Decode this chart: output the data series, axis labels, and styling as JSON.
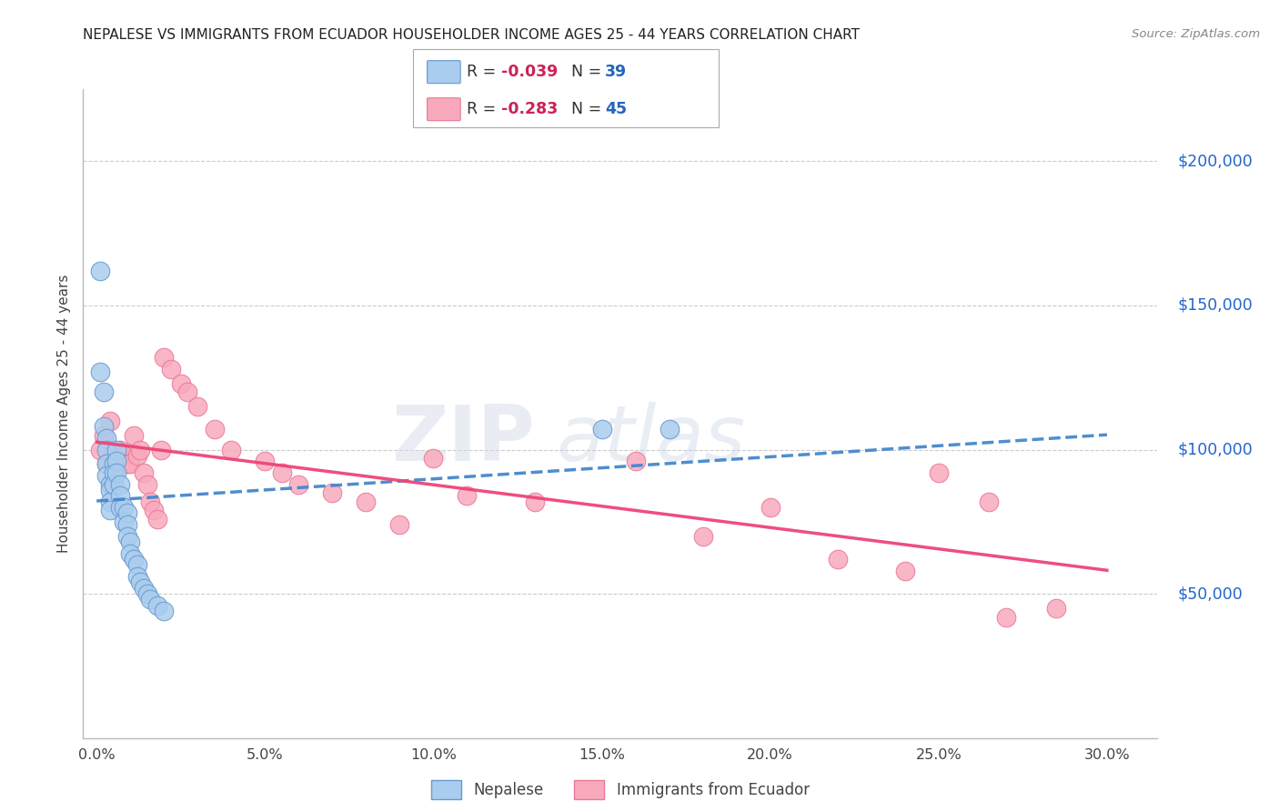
{
  "title": "NEPALESE VS IMMIGRANTS FROM ECUADOR HOUSEHOLDER INCOME AGES 25 - 44 YEARS CORRELATION CHART",
  "source": "Source: ZipAtlas.com",
  "ylabel": "Householder Income Ages 25 - 44 years",
  "ytick_labels": [
    "$50,000",
    "$100,000",
    "$150,000",
    "$200,000"
  ],
  "ytick_vals": [
    50000,
    100000,
    150000,
    200000
  ],
  "xtick_labels": [
    "0.0%",
    "5.0%",
    "10.0%",
    "15.0%",
    "20.0%",
    "25.0%",
    "30.0%"
  ],
  "xtick_vals": [
    0.0,
    0.05,
    0.1,
    0.15,
    0.2,
    0.25,
    0.3
  ],
  "ylim": [
    0,
    225000
  ],
  "xlim": [
    -0.004,
    0.315
  ],
  "watermark_zip": "ZIP",
  "watermark_atlas": "atlas",
  "nepalese_color": "#aaccee",
  "ecuador_color": "#f8aabc",
  "nepalese_edge": "#6699cc",
  "ecuador_edge": "#e87898",
  "trendline_nepal_color": "#4488cc",
  "trendline_ecuador_color": "#ee4477",
  "legend_R_val_nepal": "-0.039",
  "legend_N_val_nepal": "39",
  "legend_R_val_ecuador": "-0.283",
  "legend_N_val_ecuador": "45",
  "nepal_x": [
    0.001,
    0.001,
    0.002,
    0.002,
    0.003,
    0.003,
    0.003,
    0.003,
    0.004,
    0.004,
    0.004,
    0.004,
    0.005,
    0.005,
    0.005,
    0.006,
    0.006,
    0.006,
    0.007,
    0.007,
    0.007,
    0.008,
    0.008,
    0.009,
    0.009,
    0.009,
    0.01,
    0.01,
    0.011,
    0.012,
    0.012,
    0.013,
    0.014,
    0.015,
    0.016,
    0.018,
    0.02,
    0.15,
    0.17
  ],
  "nepal_y": [
    162000,
    127000,
    120000,
    108000,
    104000,
    100000,
    95000,
    91000,
    88000,
    86000,
    82000,
    79000,
    95000,
    92000,
    88000,
    100000,
    96000,
    92000,
    88000,
    84000,
    80000,
    80000,
    75000,
    78000,
    74000,
    70000,
    68000,
    64000,
    62000,
    60000,
    56000,
    54000,
    52000,
    50000,
    48000,
    46000,
    44000,
    107000,
    107000
  ],
  "ecuador_x": [
    0.001,
    0.002,
    0.003,
    0.004,
    0.005,
    0.005,
    0.006,
    0.007,
    0.008,
    0.009,
    0.01,
    0.011,
    0.012,
    0.013,
    0.014,
    0.015,
    0.016,
    0.017,
    0.018,
    0.019,
    0.02,
    0.022,
    0.025,
    0.027,
    0.03,
    0.035,
    0.04,
    0.05,
    0.055,
    0.06,
    0.07,
    0.08,
    0.09,
    0.1,
    0.11,
    0.13,
    0.16,
    0.18,
    0.2,
    0.22,
    0.24,
    0.25,
    0.265,
    0.27,
    0.285
  ],
  "ecuador_y": [
    100000,
    105000,
    95000,
    110000,
    100000,
    95000,
    98000,
    100000,
    98000,
    95000,
    95000,
    105000,
    98000,
    100000,
    92000,
    88000,
    82000,
    79000,
    76000,
    100000,
    132000,
    128000,
    123000,
    120000,
    115000,
    107000,
    100000,
    96000,
    92000,
    88000,
    85000,
    82000,
    74000,
    97000,
    84000,
    82000,
    96000,
    70000,
    80000,
    62000,
    58000,
    92000,
    82000,
    42000,
    45000
  ]
}
